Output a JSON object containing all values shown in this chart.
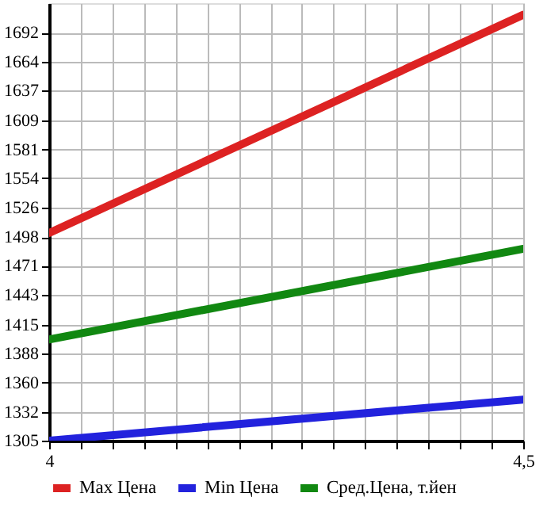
{
  "chart_data": {
    "type": "line",
    "x": [
      4,
      4.5
    ],
    "series": [
      {
        "name": "Max Цена",
        "color": "#dd2222",
        "values": [
          1502,
          1709
        ]
      },
      {
        "name": "Min Цена",
        "color": "#2222dd",
        "values": [
          1305,
          1344
        ]
      },
      {
        "name": "Сред.Цена, т.йен",
        "color": "#118811",
        "values": [
          1401,
          1487
        ]
      }
    ],
    "xlim": [
      4,
      4.5
    ],
    "xticks": [
      {
        "value": 4,
        "label": "4"
      },
      {
        "value": 4.0333,
        "label": null
      },
      {
        "value": 4.0667,
        "label": null
      },
      {
        "value": 4.1,
        "label": null
      },
      {
        "value": 4.1333,
        "label": null
      },
      {
        "value": 4.1667,
        "label": null
      },
      {
        "value": 4.2,
        "label": null
      },
      {
        "value": 4.2333,
        "label": null
      },
      {
        "value": 4.2667,
        "label": null
      },
      {
        "value": 4.3,
        "label": null
      },
      {
        "value": 4.3333,
        "label": null
      },
      {
        "value": 4.3667,
        "label": null
      },
      {
        "value": 4.4,
        "label": null
      },
      {
        "value": 4.4333,
        "label": null
      },
      {
        "value": 4.4667,
        "label": null
      },
      {
        "value": 4.5,
        "label": "4,5"
      }
    ],
    "ylim": [
      1305,
      1720
    ],
    "yticks": [
      1305,
      1332,
      1360,
      1388,
      1415,
      1443,
      1471,
      1498,
      1526,
      1554,
      1581,
      1609,
      1637,
      1664,
      1692
    ],
    "grid": true,
    "legend": "bottom",
    "marker": "none",
    "line_style": "solid"
  }
}
